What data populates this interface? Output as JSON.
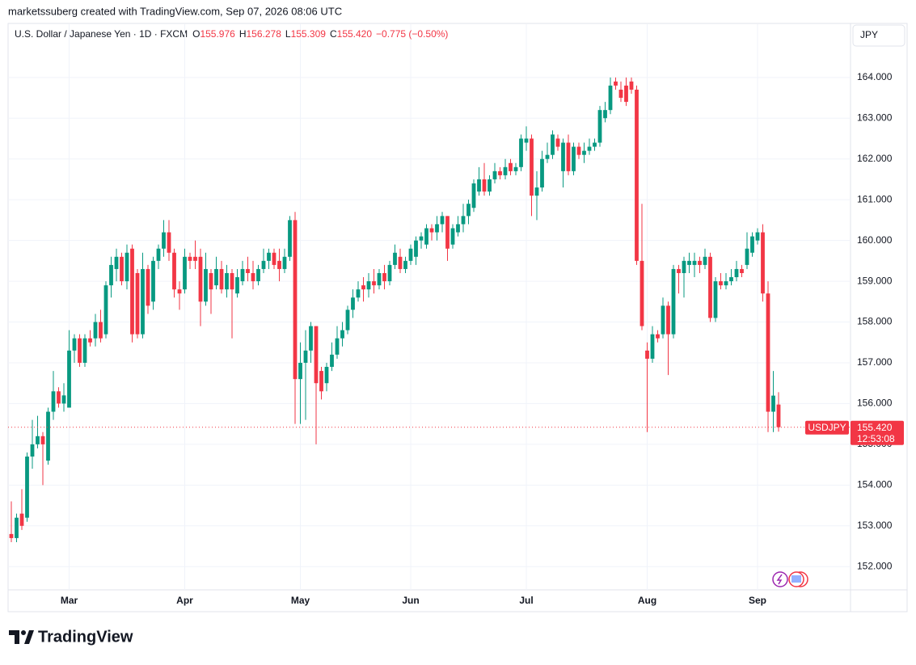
{
  "page": {
    "credit": "marketssuberg created with TradingView.com, Sep 07, 2026 08:06 UTC",
    "currency_button": "JPY",
    "brand": "TradingView"
  },
  "chart_data": {
    "type": "candlestick",
    "title": "U.S. Dollar / Japanese Yen · 1D · FXCM",
    "ohlc_header": [
      {
        "label": "O",
        "value": "155.976"
      },
      {
        "label": "H",
        "value": "156.278"
      },
      {
        "label": "L",
        "value": "155.309"
      },
      {
        "label": "C",
        "value": "155.420"
      }
    ],
    "change": "−0.775 (−0.50%)",
    "last_price": {
      "symbol": "USDJPY",
      "price": "155.420",
      "countdown": "12:53:08"
    },
    "up_color": "#089981",
    "down_color": "#f23645",
    "ylim": [
      151.43,
      164.71
    ],
    "yticks": [
      {
        "value": 152,
        "label": "152.000"
      },
      {
        "value": 153,
        "label": "153.000"
      },
      {
        "value": 154,
        "label": "154.000"
      },
      {
        "value": 155,
        "label": "155.000"
      },
      {
        "value": 156,
        "label": "156.000"
      },
      {
        "value": 157,
        "label": "157.000"
      },
      {
        "value": 158,
        "label": "158.000"
      },
      {
        "value": 159,
        "label": "159.000"
      },
      {
        "value": 160,
        "label": "160.000"
      },
      {
        "value": 161,
        "label": "161.000"
      },
      {
        "value": 162,
        "label": "162.000"
      },
      {
        "value": 163,
        "label": "163.000"
      },
      {
        "value": 164,
        "label": "164.000"
      }
    ],
    "grid": true,
    "categories": [
      null,
      null,
      null,
      null,
      null,
      null,
      null,
      null,
      null,
      null,
      null,
      "Mar",
      null,
      null,
      null,
      null,
      null,
      null,
      null,
      null,
      null,
      null,
      null,
      null,
      null,
      null,
      null,
      null,
      null,
      null,
      null,
      null,
      null,
      "Apr",
      null,
      null,
      null,
      null,
      null,
      null,
      null,
      null,
      null,
      null,
      null,
      null,
      null,
      null,
      null,
      null,
      null,
      null,
      null,
      null,
      null,
      "May",
      null,
      null,
      null,
      null,
      null,
      null,
      null,
      null,
      null,
      null,
      null,
      null,
      null,
      null,
      null,
      null,
      null,
      null,
      null,
      null,
      "Jun",
      null,
      null,
      null,
      null,
      null,
      null,
      null,
      null,
      null,
      null,
      null,
      null,
      null,
      null,
      null,
      null,
      null,
      null,
      null,
      null,
      null,
      "Jul",
      null,
      null,
      null,
      null,
      null,
      null,
      null,
      null,
      null,
      null,
      null,
      null,
      null,
      null,
      null,
      null,
      null,
      null,
      null,
      null,
      null,
      null,
      "Aug",
      null,
      null,
      null,
      null,
      null,
      null,
      null,
      null,
      null,
      null,
      null,
      null,
      null,
      null,
      null,
      null,
      null,
      null,
      null,
      null,
      "Sep",
      null,
      null,
      null,
      null
    ],
    "ohlc": [
      [
        152.8,
        153.6,
        152.6,
        152.7
      ],
      [
        152.7,
        153.3,
        152.6,
        153.2
      ],
      [
        153.3,
        153.9,
        152.9,
        153.0
      ],
      [
        153.2,
        154.8,
        153.1,
        154.7
      ],
      [
        154.7,
        155.6,
        154.4,
        155.0
      ],
      [
        155.0,
        155.7,
        154.9,
        155.2
      ],
      [
        155.2,
        155.3,
        154.0,
        155.0
      ],
      [
        154.6,
        155.9,
        154.5,
        155.8
      ],
      [
        155.8,
        156.8,
        155.6,
        156.3
      ],
      [
        156.3,
        156.4,
        155.9,
        156.0
      ],
      [
        156.0,
        156.5,
        155.8,
        156.2
      ],
      [
        155.9,
        157.8,
        155.9,
        157.3
      ],
      [
        157.3,
        157.7,
        157.0,
        157.6
      ],
      [
        157.6,
        157.7,
        156.9,
        157.0
      ],
      [
        157.0,
        157.7,
        156.9,
        157.6
      ],
      [
        157.6,
        157.8,
        157.4,
        157.5
      ],
      [
        157.6,
        158.2,
        157.4,
        158.0
      ],
      [
        158.0,
        158.3,
        157.5,
        157.6
      ],
      [
        157.7,
        159.0,
        157.6,
        158.9
      ],
      [
        158.9,
        159.6,
        158.6,
        159.4
      ],
      [
        159.3,
        159.8,
        159.0,
        159.6
      ],
      [
        159.6,
        159.7,
        158.9,
        159.0
      ],
      [
        159.0,
        159.9,
        158.8,
        159.7
      ],
      [
        159.8,
        159.9,
        157.5,
        157.7
      ],
      [
        159.2,
        159.3,
        157.6,
        157.7
      ],
      [
        157.7,
        159.7,
        157.6,
        159.3
      ],
      [
        159.3,
        159.4,
        158.2,
        158.4
      ],
      [
        158.5,
        159.6,
        158.3,
        159.5
      ],
      [
        159.5,
        159.9,
        159.3,
        159.8
      ],
      [
        159.8,
        160.5,
        159.6,
        160.2
      ],
      [
        160.2,
        160.5,
        159.5,
        159.7
      ],
      [
        159.7,
        159.8,
        158.6,
        158.8
      ],
      [
        158.8,
        159.0,
        158.3,
        158.7
      ],
      [
        158.8,
        159.8,
        158.7,
        159.6
      ],
      [
        159.6,
        159.7,
        159.3,
        159.5
      ],
      [
        159.6,
        160.0,
        159.3,
        159.5
      ],
      [
        159.6,
        159.8,
        157.9,
        158.5
      ],
      [
        158.5,
        159.7,
        158.4,
        159.3
      ],
      [
        159.2,
        159.3,
        158.2,
        158.8
      ],
      [
        158.9,
        159.6,
        158.8,
        159.3
      ],
      [
        159.3,
        159.5,
        158.7,
        158.8
      ],
      [
        158.8,
        159.4,
        158.6,
        159.2
      ],
      [
        159.2,
        159.3,
        157.6,
        158.8
      ],
      [
        158.7,
        159.3,
        158.6,
        159.1
      ],
      [
        159.0,
        159.5,
        158.9,
        159.3
      ],
      [
        159.3,
        159.6,
        159.0,
        159.2
      ],
      [
        159.2,
        159.5,
        158.8,
        159.0
      ],
      [
        159.0,
        159.4,
        158.9,
        159.3
      ],
      [
        159.3,
        159.8,
        159.2,
        159.5
      ],
      [
        159.5,
        159.8,
        159.3,
        159.7
      ],
      [
        159.7,
        159.8,
        159.3,
        159.4
      ],
      [
        159.5,
        159.8,
        159.0,
        159.3
      ],
      [
        159.3,
        159.8,
        159.2,
        159.6
      ],
      [
        159.6,
        160.6,
        159.5,
        160.5
      ],
      [
        160.5,
        160.7,
        155.5,
        156.6
      ],
      [
        156.6,
        157.5,
        155.5,
        157.0
      ],
      [
        157.0,
        157.8,
        155.6,
        157.3
      ],
      [
        157.3,
        158.0,
        157.0,
        157.9
      ],
      [
        157.9,
        157.9,
        155.0,
        156.5
      ],
      [
        156.8,
        156.9,
        156.1,
        156.3
      ],
      [
        156.5,
        157.0,
        156.3,
        156.9
      ],
      [
        156.9,
        157.5,
        156.8,
        157.2
      ],
      [
        157.2,
        157.9,
        157.1,
        157.6
      ],
      [
        157.6,
        158.0,
        157.4,
        157.8
      ],
      [
        157.8,
        158.4,
        157.7,
        158.3
      ],
      [
        158.3,
        158.8,
        158.1,
        158.6
      ],
      [
        158.6,
        159.0,
        158.5,
        158.8
      ],
      [
        158.9,
        159.1,
        158.5,
        158.8
      ],
      [
        158.8,
        159.2,
        158.6,
        159.0
      ],
      [
        159.0,
        159.3,
        158.7,
        158.9
      ],
      [
        158.9,
        159.3,
        158.8,
        159.2
      ],
      [
        159.2,
        159.4,
        158.8,
        159.0
      ],
      [
        159.0,
        159.5,
        158.9,
        159.4
      ],
      [
        159.4,
        159.9,
        159.3,
        159.7
      ],
      [
        159.6,
        159.8,
        159.2,
        159.3
      ],
      [
        159.3,
        159.6,
        159.2,
        159.5
      ],
      [
        159.5,
        159.9,
        159.4,
        159.8
      ],
      [
        159.6,
        160.1,
        159.4,
        160.0
      ],
      [
        160.0,
        160.2,
        159.8,
        160.1
      ],
      [
        159.9,
        160.4,
        159.8,
        160.3
      ],
      [
        160.3,
        160.4,
        160.0,
        160.2
      ],
      [
        160.2,
        160.6,
        160.0,
        160.4
      ],
      [
        160.4,
        160.7,
        160.2,
        160.6
      ],
      [
        160.6,
        160.6,
        159.5,
        159.8
      ],
      [
        159.9,
        160.4,
        159.8,
        160.3
      ],
      [
        160.2,
        160.6,
        160.1,
        160.4
      ],
      [
        160.4,
        160.9,
        160.2,
        160.6
      ],
      [
        160.6,
        161.0,
        160.4,
        160.9
      ],
      [
        160.8,
        161.5,
        160.7,
        161.4
      ],
      [
        161.2,
        161.8,
        161.1,
        161.5
      ],
      [
        161.5,
        161.9,
        161.1,
        161.2
      ],
      [
        161.2,
        161.6,
        161.1,
        161.5
      ],
      [
        161.5,
        161.9,
        161.4,
        161.7
      ],
      [
        161.7,
        161.8,
        161.5,
        161.6
      ],
      [
        161.6,
        162.0,
        161.5,
        161.8
      ],
      [
        161.9,
        162.0,
        161.6,
        161.7
      ],
      [
        161.7,
        161.9,
        161.6,
        161.8
      ],
      [
        161.8,
        162.6,
        161.7,
        162.5
      ],
      [
        162.4,
        162.8,
        162.2,
        162.5
      ],
      [
        162.5,
        162.6,
        160.6,
        161.1
      ],
      [
        161.1,
        161.7,
        160.5,
        161.3
      ],
      [
        161.3,
        162.2,
        161.2,
        162.0
      ],
      [
        162.0,
        162.4,
        161.9,
        162.1
      ],
      [
        162.1,
        162.7,
        162.0,
        162.6
      ],
      [
        162.5,
        162.6,
        162.2,
        162.3
      ],
      [
        161.7,
        162.5,
        161.3,
        162.4
      ],
      [
        162.4,
        162.6,
        161.6,
        161.7
      ],
      [
        161.7,
        162.4,
        161.6,
        162.3
      ],
      [
        162.3,
        162.4,
        162.0,
        162.1
      ],
      [
        162.1,
        162.4,
        161.9,
        162.2
      ],
      [
        162.2,
        162.5,
        162.1,
        162.3
      ],
      [
        162.3,
        162.5,
        162.2,
        162.4
      ],
      [
        162.4,
        163.3,
        162.3,
        163.2
      ],
      [
        163.0,
        163.4,
        162.9,
        163.2
      ],
      [
        163.2,
        164.0,
        163.1,
        163.8
      ],
      [
        163.9,
        164.0,
        163.7,
        163.8
      ],
      [
        163.7,
        163.9,
        163.4,
        163.5
      ],
      [
        163.8,
        164.0,
        163.3,
        163.4
      ],
      [
        163.9,
        164.0,
        163.6,
        163.7
      ],
      [
        163.7,
        163.8,
        159.4,
        159.5
      ],
      [
        159.5,
        160.9,
        157.8,
        157.9
      ],
      [
        157.3,
        157.5,
        155.3,
        157.1
      ],
      [
        157.1,
        157.9,
        157.0,
        157.7
      ],
      [
        157.7,
        157.8,
        157.5,
        157.6
      ],
      [
        157.7,
        158.6,
        157.6,
        158.4
      ],
      [
        158.4,
        158.5,
        156.7,
        157.7
      ],
      [
        157.7,
        159.4,
        157.6,
        159.3
      ],
      [
        159.3,
        159.4,
        158.7,
        159.2
      ],
      [
        159.2,
        159.6,
        158.6,
        159.5
      ],
      [
        159.4,
        159.7,
        159.2,
        159.5
      ],
      [
        159.4,
        159.7,
        159.1,
        159.5
      ],
      [
        159.5,
        159.6,
        159.2,
        159.4
      ],
      [
        159.4,
        159.8,
        159.3,
        159.6
      ],
      [
        159.6,
        159.7,
        158.0,
        158.1
      ],
      [
        158.1,
        159.1,
        158.0,
        159.0
      ],
      [
        159.0,
        159.2,
        158.8,
        158.9
      ],
      [
        158.9,
        159.2,
        158.8,
        159.0
      ],
      [
        159.0,
        159.3,
        158.9,
        159.1
      ],
      [
        159.1,
        159.5,
        159.0,
        159.3
      ],
      [
        159.3,
        159.4,
        159.1,
        159.2
      ],
      [
        159.4,
        160.2,
        159.3,
        159.8
      ],
      [
        159.7,
        160.2,
        159.6,
        160.1
      ],
      [
        160.0,
        160.3,
        159.9,
        160.2
      ],
      [
        160.2,
        160.4,
        158.5,
        158.7
      ],
      [
        158.7,
        159.0,
        155.3,
        155.8
      ],
      [
        155.8,
        156.8,
        155.3,
        156.195
      ],
      [
        155.976,
        156.278,
        155.309,
        155.42
      ]
    ]
  }
}
